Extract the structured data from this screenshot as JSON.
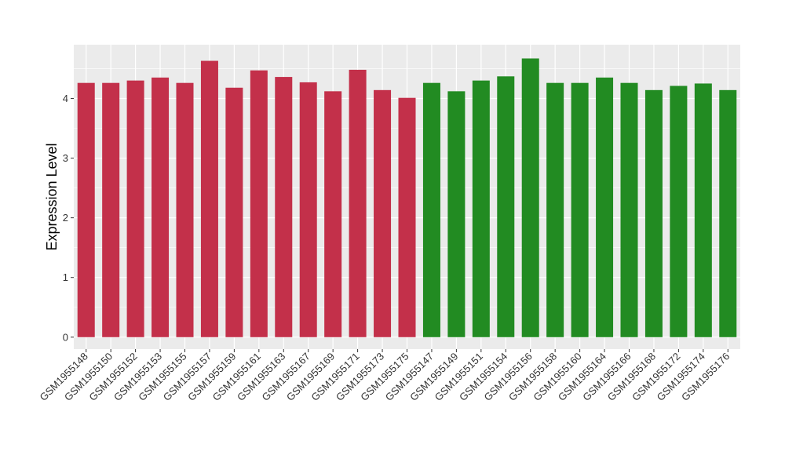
{
  "chart_data": {
    "type": "bar",
    "title": "",
    "xlabel": "",
    "ylabel": "Expression Level",
    "ylim": [
      -0.2,
      4.9
    ],
    "yticks": [
      0,
      1,
      2,
      3,
      4
    ],
    "grid": true,
    "panel_background": "#EBEBEB",
    "grid_color": "#FFFFFF",
    "categories": [
      "GSM1955148",
      "GSM1955150",
      "GSM1955152",
      "GSM1955153",
      "GSM1955155",
      "GSM1955157",
      "GSM1955159",
      "GSM1955161",
      "GSM1955163",
      "GSM1955167",
      "GSM1955169",
      "GSM1955171",
      "GSM1955173",
      "GSM1955175",
      "GSM1955147",
      "GSM1955149",
      "GSM1955151",
      "GSM1955154",
      "GSM1955156",
      "GSM1955158",
      "GSM1955160",
      "GSM1955164",
      "GSM1955166",
      "GSM1955168",
      "GSM1955172",
      "GSM1955174",
      "GSM1955176"
    ],
    "values": [
      4.26,
      4.26,
      4.3,
      4.35,
      4.26,
      4.63,
      4.18,
      4.47,
      4.36,
      4.27,
      4.12,
      4.48,
      4.14,
      4.01,
      4.26,
      4.12,
      4.3,
      4.37,
      4.67,
      4.26,
      4.26,
      4.35,
      4.26,
      4.14,
      4.21,
      4.25,
      4.14
    ],
    "groups": [
      {
        "color": "#C3304A",
        "count": 14
      },
      {
        "color": "#228B22",
        "count": 13
      }
    ]
  }
}
